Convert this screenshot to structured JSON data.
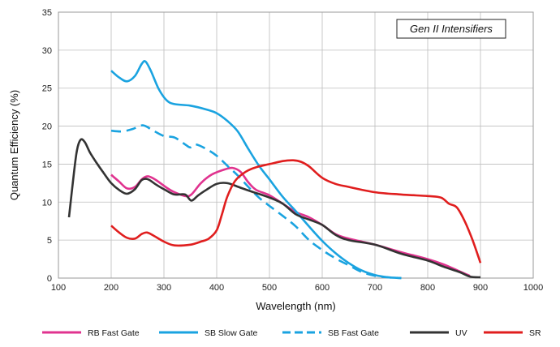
{
  "chart_data": {
    "type": "line",
    "title": "",
    "annotation": "Gen II Intensifiers",
    "xlabel": "Wavelength (nm)",
    "ylabel": "Quantum Efficiency (%)",
    "xlim": [
      100,
      1000
    ],
    "ylim": [
      0,
      35
    ],
    "x_ticks": [
      100,
      200,
      300,
      400,
      500,
      600,
      700,
      800,
      900,
      1000
    ],
    "y_ticks": [
      0,
      5,
      10,
      15,
      20,
      25,
      30,
      35
    ],
    "grid": true,
    "legend_placement": "bottom",
    "series": [
      {
        "name": "RB Fast Gate",
        "color": "#e0338f",
        "dash": false,
        "points": [
          [
            200,
            13.6
          ],
          [
            215,
            12.7
          ],
          [
            230,
            11.8
          ],
          [
            245,
            12.0
          ],
          [
            258,
            13.0
          ],
          [
            270,
            13.4
          ],
          [
            285,
            12.9
          ],
          [
            305,
            11.9
          ],
          [
            320,
            11.3
          ],
          [
            340,
            10.8
          ],
          [
            352,
            11.0
          ],
          [
            370,
            12.5
          ],
          [
            390,
            13.6
          ],
          [
            415,
            14.3
          ],
          [
            430,
            14.5
          ],
          [
            445,
            14.0
          ],
          [
            460,
            12.6
          ],
          [
            475,
            11.6
          ],
          [
            500,
            10.9
          ],
          [
            525,
            9.8
          ],
          [
            550,
            8.7
          ],
          [
            575,
            8.0
          ],
          [
            600,
            7.0
          ],
          [
            625,
            5.8
          ],
          [
            650,
            5.2
          ],
          [
            700,
            4.4
          ],
          [
            750,
            3.4
          ],
          [
            800,
            2.5
          ],
          [
            830,
            1.8
          ],
          [
            860,
            0.9
          ],
          [
            880,
            0.3
          ]
        ]
      },
      {
        "name": "SB Slow Gate",
        "color": "#1aa3e0",
        "dash": false,
        "points": [
          [
            200,
            27.3
          ],
          [
            215,
            26.4
          ],
          [
            230,
            25.9
          ],
          [
            245,
            26.6
          ],
          [
            258,
            28.2
          ],
          [
            265,
            28.5
          ],
          [
            275,
            27.3
          ],
          [
            290,
            24.9
          ],
          [
            305,
            23.4
          ],
          [
            320,
            22.9
          ],
          [
            350,
            22.7
          ],
          [
            380,
            22.2
          ],
          [
            400,
            21.7
          ],
          [
            420,
            20.7
          ],
          [
            440,
            19.3
          ],
          [
            460,
            17.0
          ],
          [
            480,
            14.8
          ],
          [
            500,
            13.0
          ],
          [
            525,
            10.7
          ],
          [
            550,
            8.8
          ],
          [
            575,
            6.8
          ],
          [
            600,
            4.9
          ],
          [
            625,
            3.3
          ],
          [
            650,
            2.0
          ],
          [
            675,
            1.0
          ],
          [
            700,
            0.4
          ],
          [
            725,
            0.1
          ],
          [
            750,
            0.0
          ]
        ]
      },
      {
        "name": "SB Fast Gate",
        "color": "#1aa3e0",
        "dash": true,
        "points": [
          [
            200,
            19.4
          ],
          [
            220,
            19.3
          ],
          [
            240,
            19.6
          ],
          [
            260,
            20.1
          ],
          [
            280,
            19.4
          ],
          [
            300,
            18.7
          ],
          [
            320,
            18.5
          ],
          [
            340,
            17.6
          ],
          [
            350,
            17.2
          ],
          [
            360,
            17.6
          ],
          [
            380,
            17.0
          ],
          [
            400,
            16.1
          ],
          [
            420,
            14.8
          ],
          [
            440,
            13.5
          ],
          [
            460,
            12.0
          ],
          [
            480,
            10.6
          ],
          [
            500,
            9.5
          ],
          [
            525,
            8.2
          ],
          [
            550,
            6.8
          ],
          [
            575,
            5.0
          ],
          [
            600,
            3.7
          ],
          [
            625,
            2.6
          ],
          [
            650,
            1.7
          ],
          [
            675,
            0.8
          ],
          [
            700,
            0.3
          ],
          [
            725,
            0.1
          ],
          [
            750,
            0.0
          ]
        ]
      },
      {
        "name": "UV",
        "color": "#333333",
        "dash": false,
        "points": [
          [
            120,
            8.0
          ],
          [
            128,
            13.0
          ],
          [
            135,
            16.8
          ],
          [
            142,
            18.2
          ],
          [
            150,
            17.9
          ],
          [
            160,
            16.5
          ],
          [
            172,
            15.2
          ],
          [
            185,
            13.9
          ],
          [
            200,
            12.5
          ],
          [
            215,
            11.6
          ],
          [
            230,
            11.1
          ],
          [
            245,
            11.7
          ],
          [
            258,
            12.9
          ],
          [
            270,
            13.0
          ],
          [
            285,
            12.3
          ],
          [
            305,
            11.5
          ],
          [
            320,
            11.0
          ],
          [
            340,
            11.0
          ],
          [
            352,
            10.2
          ],
          [
            365,
            10.9
          ],
          [
            380,
            11.6
          ],
          [
            400,
            12.4
          ],
          [
            420,
            12.5
          ],
          [
            445,
            11.9
          ],
          [
            470,
            11.3
          ],
          [
            500,
            10.6
          ],
          [
            525,
            9.8
          ],
          [
            550,
            8.4
          ],
          [
            575,
            7.7
          ],
          [
            600,
            7.0
          ],
          [
            625,
            5.7
          ],
          [
            650,
            5.0
          ],
          [
            700,
            4.4
          ],
          [
            750,
            3.2
          ],
          [
            800,
            2.3
          ],
          [
            830,
            1.5
          ],
          [
            860,
            0.8
          ],
          [
            880,
            0.2
          ],
          [
            900,
            0.1
          ]
        ]
      },
      {
        "name": "SR",
        "color": "#e01e1e",
        "dash": false,
        "points": [
          [
            200,
            6.9
          ],
          [
            215,
            6.0
          ],
          [
            230,
            5.3
          ],
          [
            245,
            5.2
          ],
          [
            258,
            5.8
          ],
          [
            268,
            6.0
          ],
          [
            280,
            5.6
          ],
          [
            300,
            4.8
          ],
          [
            320,
            4.3
          ],
          [
            350,
            4.4
          ],
          [
            370,
            4.8
          ],
          [
            385,
            5.2
          ],
          [
            400,
            6.3
          ],
          [
            410,
            8.4
          ],
          [
            420,
            10.7
          ],
          [
            435,
            12.8
          ],
          [
            455,
            14.0
          ],
          [
            475,
            14.6
          ],
          [
            500,
            15.0
          ],
          [
            525,
            15.4
          ],
          [
            545,
            15.5
          ],
          [
            560,
            15.3
          ],
          [
            575,
            14.7
          ],
          [
            600,
            13.2
          ],
          [
            625,
            12.4
          ],
          [
            650,
            12.0
          ],
          [
            700,
            11.3
          ],
          [
            750,
            11.0
          ],
          [
            800,
            10.8
          ],
          [
            825,
            10.6
          ],
          [
            840,
            9.8
          ],
          [
            855,
            9.3
          ],
          [
            870,
            7.5
          ],
          [
            885,
            5.0
          ],
          [
            900,
            2.0
          ]
        ]
      }
    ]
  }
}
